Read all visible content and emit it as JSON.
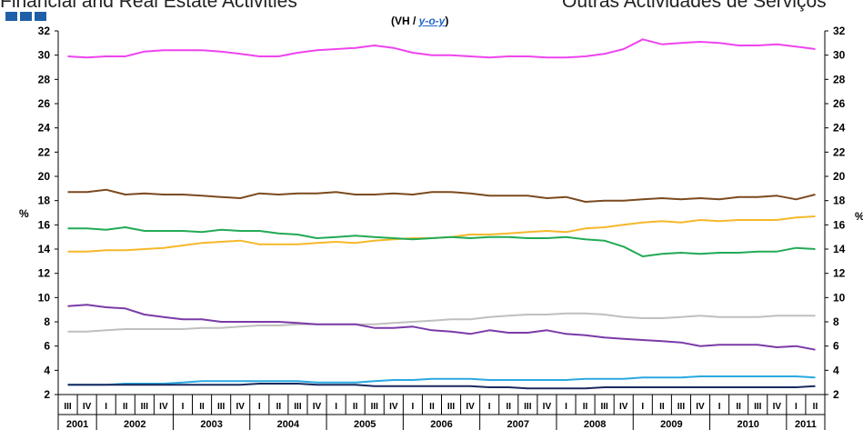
{
  "header": {
    "left_title": "Financial and Real Estate Activities",
    "right_title": "Outras Actividades de Serviços",
    "subtitle_prefix": "(VH / ",
    "subtitle_yoy": "y-o-y",
    "subtitle_suffix": ")"
  },
  "chart_data": {
    "type": "line",
    "ylabel_left": "%",
    "ylabel_right": "%",
    "ylim": [
      2,
      32
    ],
    "yticks": [
      2,
      4,
      6,
      8,
      10,
      12,
      14,
      16,
      18,
      20,
      22,
      24,
      26,
      28,
      30,
      32
    ],
    "grid": false,
    "quarters": [
      "III",
      "IV",
      "I",
      "II",
      "III",
      "IV",
      "I",
      "II",
      "III",
      "IV",
      "I",
      "II",
      "III",
      "IV",
      "I",
      "II",
      "III",
      "IV",
      "I",
      "II",
      "III",
      "IV",
      "I",
      "II",
      "III",
      "IV",
      "I",
      "II",
      "III",
      "IV",
      "I",
      "II",
      "III",
      "IV",
      "I",
      "II",
      "III",
      "IV",
      "I",
      "II"
    ],
    "years": [
      {
        "label": "2001",
        "start": 0,
        "count": 2
      },
      {
        "label": "2002",
        "start": 2,
        "count": 4
      },
      {
        "label": "2003",
        "start": 6,
        "count": 4
      },
      {
        "label": "2004",
        "start": 10,
        "count": 4
      },
      {
        "label": "2005",
        "start": 14,
        "count": 4
      },
      {
        "label": "2006",
        "start": 18,
        "count": 4
      },
      {
        "label": "2007",
        "start": 22,
        "count": 4
      },
      {
        "label": "2008",
        "start": 26,
        "count": 4
      },
      {
        "label": "2009",
        "start": 30,
        "count": 4
      },
      {
        "label": "2010",
        "start": 34,
        "count": 4
      },
      {
        "label": "2011",
        "start": 38,
        "count": 2
      }
    ],
    "series": [
      {
        "color": "#ee44ee",
        "values": [
          29.9,
          29.8,
          29.9,
          29.9,
          30.3,
          30.4,
          30.4,
          30.4,
          30.3,
          30.1,
          29.9,
          29.9,
          30.2,
          30.4,
          30.5,
          30.6,
          30.8,
          30.6,
          30.2,
          30.0,
          30.0,
          29.9,
          29.8,
          29.9,
          29.9,
          29.8,
          29.8,
          29.9,
          30.1,
          30.5,
          31.3,
          30.9,
          31.0,
          31.1,
          31.0,
          30.8,
          30.8,
          30.9,
          30.7,
          30.5
        ]
      },
      {
        "color": "#7b4a1e",
        "values": [
          18.7,
          18.7,
          18.9,
          18.5,
          18.6,
          18.5,
          18.5,
          18.4,
          18.3,
          18.2,
          18.6,
          18.5,
          18.6,
          18.6,
          18.7,
          18.5,
          18.5,
          18.6,
          18.5,
          18.7,
          18.7,
          18.6,
          18.4,
          18.4,
          18.4,
          18.2,
          18.3,
          17.9,
          18.0,
          18.0,
          18.1,
          18.2,
          18.1,
          18.2,
          18.1,
          18.3,
          18.3,
          18.4,
          18.1,
          18.5
        ]
      },
      {
        "color": "#f5b82a",
        "values": [
          13.8,
          13.8,
          13.9,
          13.9,
          14.0,
          14.1,
          14.3,
          14.5,
          14.6,
          14.7,
          14.4,
          14.4,
          14.4,
          14.5,
          14.6,
          14.5,
          14.7,
          14.8,
          14.9,
          14.9,
          15.0,
          15.2,
          15.2,
          15.3,
          15.4,
          15.5,
          15.4,
          15.7,
          15.8,
          16.0,
          16.2,
          16.3,
          16.2,
          16.4,
          16.3,
          16.4,
          16.4,
          16.4,
          16.6,
          16.7
        ]
      },
      {
        "color": "#22aa55",
        "values": [
          15.7,
          15.7,
          15.6,
          15.8,
          15.5,
          15.5,
          15.5,
          15.4,
          15.6,
          15.5,
          15.5,
          15.3,
          15.2,
          14.9,
          15.0,
          15.1,
          15.0,
          14.9,
          14.8,
          14.9,
          15.0,
          14.9,
          15.0,
          15.0,
          14.9,
          14.9,
          15.0,
          14.8,
          14.7,
          14.2,
          13.4,
          13.6,
          13.7,
          13.6,
          13.7,
          13.7,
          13.8,
          13.8,
          14.1,
          14.0
        ]
      },
      {
        "color": "#bfbfbf",
        "values": [
          7.2,
          7.2,
          7.3,
          7.4,
          7.4,
          7.4,
          7.4,
          7.5,
          7.5,
          7.6,
          7.7,
          7.7,
          7.8,
          7.8,
          7.8,
          7.8,
          7.8,
          7.9,
          8.0,
          8.1,
          8.2,
          8.2,
          8.4,
          8.5,
          8.6,
          8.6,
          8.7,
          8.7,
          8.6,
          8.4,
          8.3,
          8.3,
          8.4,
          8.5,
          8.4,
          8.4,
          8.4,
          8.5,
          8.5,
          8.5
        ]
      },
      {
        "color": "#7a3aa8",
        "values": [
          9.3,
          9.4,
          9.2,
          9.1,
          8.6,
          8.4,
          8.2,
          8.2,
          8.0,
          8.0,
          8.0,
          8.0,
          7.9,
          7.8,
          7.8,
          7.8,
          7.5,
          7.5,
          7.6,
          7.3,
          7.2,
          7.0,
          7.3,
          7.1,
          7.1,
          7.3,
          7.0,
          6.9,
          6.7,
          6.6,
          6.5,
          6.4,
          6.3,
          6.0,
          6.1,
          6.1,
          6.1,
          5.9,
          6.0,
          5.7
        ]
      },
      {
        "color": "#29a9e0",
        "values": [
          2.8,
          2.8,
          2.8,
          2.9,
          2.9,
          2.9,
          3.0,
          3.1,
          3.1,
          3.1,
          3.1,
          3.1,
          3.1,
          3.0,
          3.0,
          3.0,
          3.1,
          3.2,
          3.2,
          3.3,
          3.3,
          3.3,
          3.2,
          3.2,
          3.2,
          3.2,
          3.2,
          3.3,
          3.3,
          3.3,
          3.4,
          3.4,
          3.4,
          3.5,
          3.5,
          3.5,
          3.5,
          3.5,
          3.5,
          3.4
        ]
      },
      {
        "color": "#1b2a5e",
        "values": [
          2.8,
          2.8,
          2.8,
          2.8,
          2.8,
          2.8,
          2.8,
          2.8,
          2.8,
          2.8,
          2.9,
          2.9,
          2.9,
          2.8,
          2.8,
          2.8,
          2.7,
          2.7,
          2.7,
          2.7,
          2.7,
          2.7,
          2.6,
          2.6,
          2.5,
          2.5,
          2.5,
          2.5,
          2.6,
          2.6,
          2.6,
          2.6,
          2.6,
          2.6,
          2.6,
          2.6,
          2.6,
          2.6,
          2.6,
          2.7
        ]
      }
    ]
  }
}
